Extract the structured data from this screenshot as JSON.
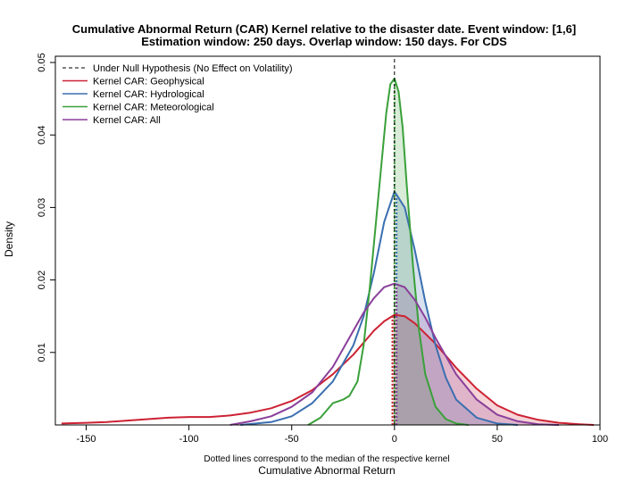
{
  "chart_data": {
    "type": "line",
    "title_line1": "Cumulative Abnormal Return (CAR) Kernel relative to the disaster date. Event window: [1,6]",
    "title_line2": "Estimation window: 250 days. Overlap window: 150 days. For CDS",
    "xlabel": "Cumulative Abnormal Return",
    "x_note": "Dotted lines correspond to the median of the respective kernel",
    "ylabel": "Density",
    "xlim": [
      -165,
      100
    ],
    "ylim": [
      0,
      0.05
    ],
    "x_ticks": [
      -150,
      -100,
      -50,
      0,
      50,
      100
    ],
    "y_ticks": [
      0.01,
      0.02,
      0.03,
      0.04,
      0.05
    ],
    "grid": false,
    "legend_position": "top-left",
    "null_hypothesis": {
      "name": "Under Null Hypothesis (No Effect on Volatility)",
      "x": 0,
      "color": "#000000"
    },
    "series": [
      {
        "name": "Kernel CAR: Geophysical",
        "color": "#cd2233",
        "fill": "rgba(205,34,51,0.20)",
        "median": -1,
        "x": [
          -162,
          -150,
          -140,
          -130,
          -120,
          -110,
          -100,
          -90,
          -80,
          -70,
          -60,
          -50,
          -40,
          -30,
          -20,
          -10,
          -5,
          0,
          5,
          10,
          20,
          30,
          40,
          50,
          60,
          70,
          80,
          90,
          97
        ],
        "y": [
          0.0002,
          0.0003,
          0.0004,
          0.0006,
          0.0008,
          0.001,
          0.0011,
          0.0011,
          0.0013,
          0.0017,
          0.0023,
          0.0033,
          0.0048,
          0.007,
          0.0097,
          0.013,
          0.0143,
          0.0152,
          0.015,
          0.014,
          0.0112,
          0.0079,
          0.005,
          0.0027,
          0.0014,
          0.0007,
          0.0003,
          0.0001,
          0.0
        ]
      },
      {
        "name": "Kernel CAR: Hydrological",
        "color": "#3a6fb0",
        "fill": "rgba(58,111,176,0.20)",
        "median": 1,
        "x": [
          -75,
          -60,
          -50,
          -40,
          -30,
          -20,
          -15,
          -10,
          -5,
          0,
          5,
          10,
          15,
          20,
          25,
          30,
          40,
          50,
          60
        ],
        "y": [
          0.0,
          0.0004,
          0.0012,
          0.003,
          0.006,
          0.011,
          0.015,
          0.021,
          0.028,
          0.0322,
          0.03,
          0.024,
          0.017,
          0.011,
          0.0065,
          0.0035,
          0.001,
          0.0002,
          0.0
        ]
      },
      {
        "name": "Kernel CAR: Meteorological",
        "color": "#3aa03a",
        "fill": "rgba(58,160,58,0.20)",
        "median": 0,
        "x": [
          -42,
          -36,
          -30,
          -25,
          -22,
          -18,
          -15,
          -12,
          -9,
          -6,
          -4,
          -2,
          0,
          2,
          4,
          6,
          9,
          12,
          15,
          20,
          25,
          30,
          36
        ],
        "y": [
          0.0,
          0.001,
          0.003,
          0.0035,
          0.004,
          0.006,
          0.011,
          0.019,
          0.028,
          0.037,
          0.043,
          0.047,
          0.0478,
          0.046,
          0.041,
          0.033,
          0.022,
          0.013,
          0.007,
          0.0025,
          0.0008,
          0.0002,
          0.0
        ]
      },
      {
        "name": "Kernel CAR: All",
        "color": "#8a3f9a",
        "fill": "rgba(138,63,154,0.20)",
        "median": 1,
        "x": [
          -80,
          -70,
          -60,
          -50,
          -40,
          -30,
          -20,
          -15,
          -10,
          -5,
          0,
          5,
          10,
          15,
          20,
          30,
          40,
          50,
          60,
          70,
          80
        ],
        "y": [
          0.0,
          0.0005,
          0.0012,
          0.0025,
          0.0045,
          0.008,
          0.013,
          0.0155,
          0.0175,
          0.019,
          0.0195,
          0.019,
          0.0172,
          0.0148,
          0.012,
          0.007,
          0.0035,
          0.0014,
          0.0005,
          0.0001,
          0.0
        ]
      }
    ]
  }
}
